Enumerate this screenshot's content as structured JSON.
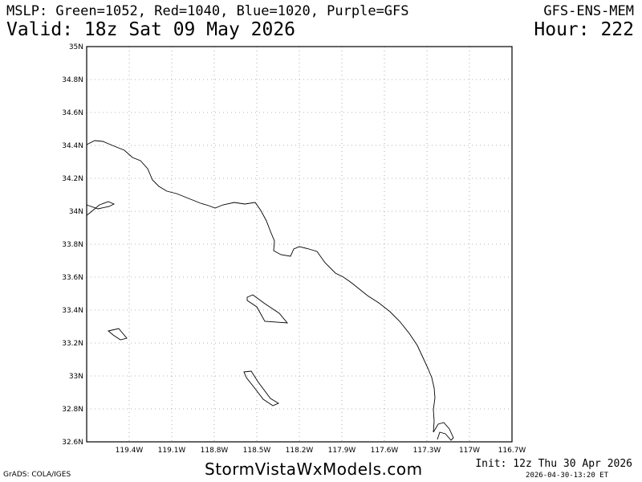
{
  "header": {
    "title_line1": "MSLP: Green=1052, Red=1040, Blue=1020, Purple=GFS",
    "model": "GFS-ENS-MEM",
    "valid": "Valid: 18z Sat 09 May 2026",
    "hour": "Hour: 222"
  },
  "map": {
    "lat_labels": [
      "35N",
      "34.8N",
      "34.6N",
      "34.4N",
      "34.2N",
      "34N",
      "33.8N",
      "33.6N",
      "33.4N",
      "33.2N",
      "33N",
      "32.8N",
      "32.6N"
    ],
    "lon_labels": [
      "119.4W",
      "119.1W",
      "118.8W",
      "118.5W",
      "118.2W",
      "117.9W",
      "117.6W",
      "117.3W",
      "117W",
      "116.7W"
    ],
    "gridlines": "dotted",
    "features": [
      "coastline",
      "channel-islands"
    ]
  },
  "footer": {
    "grads": "GrADS: COLA/IGES",
    "site": "StormVistaWxModels.com",
    "init": "Init: 12z Thu 30 Apr 2026",
    "timestamp": "2026-04-30-13:20 ET"
  }
}
